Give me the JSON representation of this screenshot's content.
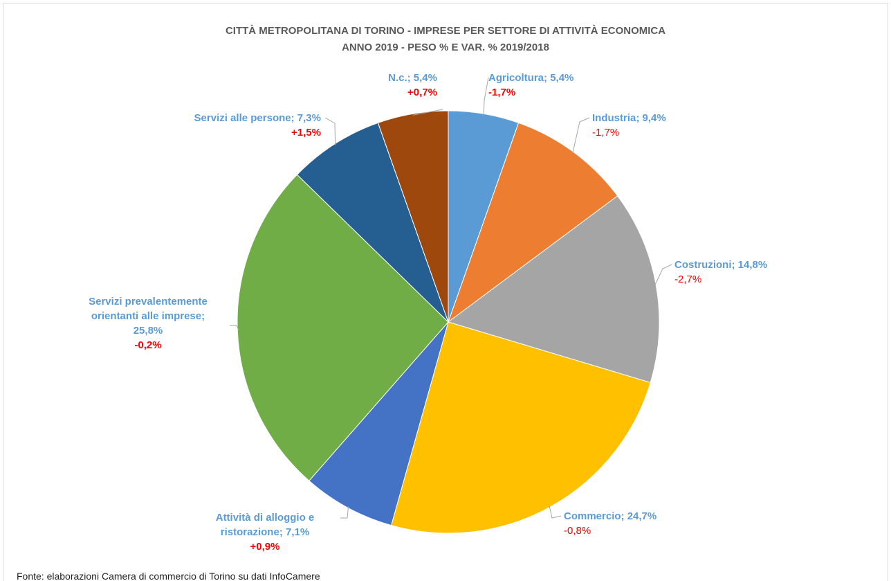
{
  "chart_data": {
    "type": "pie",
    "title": "CITTÀ METROPOLITANA DI TORINO - IMPRESE PER SETTORE DI ATTIVITÀ ECONOMICA",
    "subtitle": "ANNO 2019 - PESO % E VAR. % 2019/2018",
    "categories": [
      "Agricoltura;",
      "Industria;",
      "Costruzioni;",
      "Commercio;",
      "Attività di alloggio e ristorazione;",
      "Servizi prevalentemente orientanti alle imprese;",
      "Servizi alle persone;",
      "N.c.;"
    ],
    "values": [
      5.4,
      9.4,
      14.8,
      24.7,
      7.1,
      25.8,
      7.3,
      5.4
    ],
    "value_labels": [
      "5,4%",
      "9,4%",
      "14,8%",
      "24,7%",
      "7,1%",
      "25,8%",
      "7,3%",
      "5,4%"
    ],
    "changes": [
      -1.7,
      -1.7,
      -2.7,
      -0.8,
      0.9,
      -0.2,
      1.5,
      0.7
    ],
    "change_labels": [
      "-1,7%",
      "-1,7%",
      "-2,7%",
      "-0,8%",
      "+0,9%",
      "-0,2%",
      "+1,5%",
      "+0,7%"
    ],
    "change_bold": [
      true,
      false,
      false,
      false,
      true,
      true,
      true,
      true
    ],
    "colors": [
      "#5b9bd5",
      "#ed7d31",
      "#a5a5a5",
      "#ffc000",
      "#4472c4",
      "#70ad47",
      "#255e91",
      "#9e480e"
    ],
    "label_color": "#5b9bd5",
    "change_color": "#ff0000",
    "source": "Fonte: elaborazioni Camera di commercio di Torino su dati InfoCamere"
  }
}
